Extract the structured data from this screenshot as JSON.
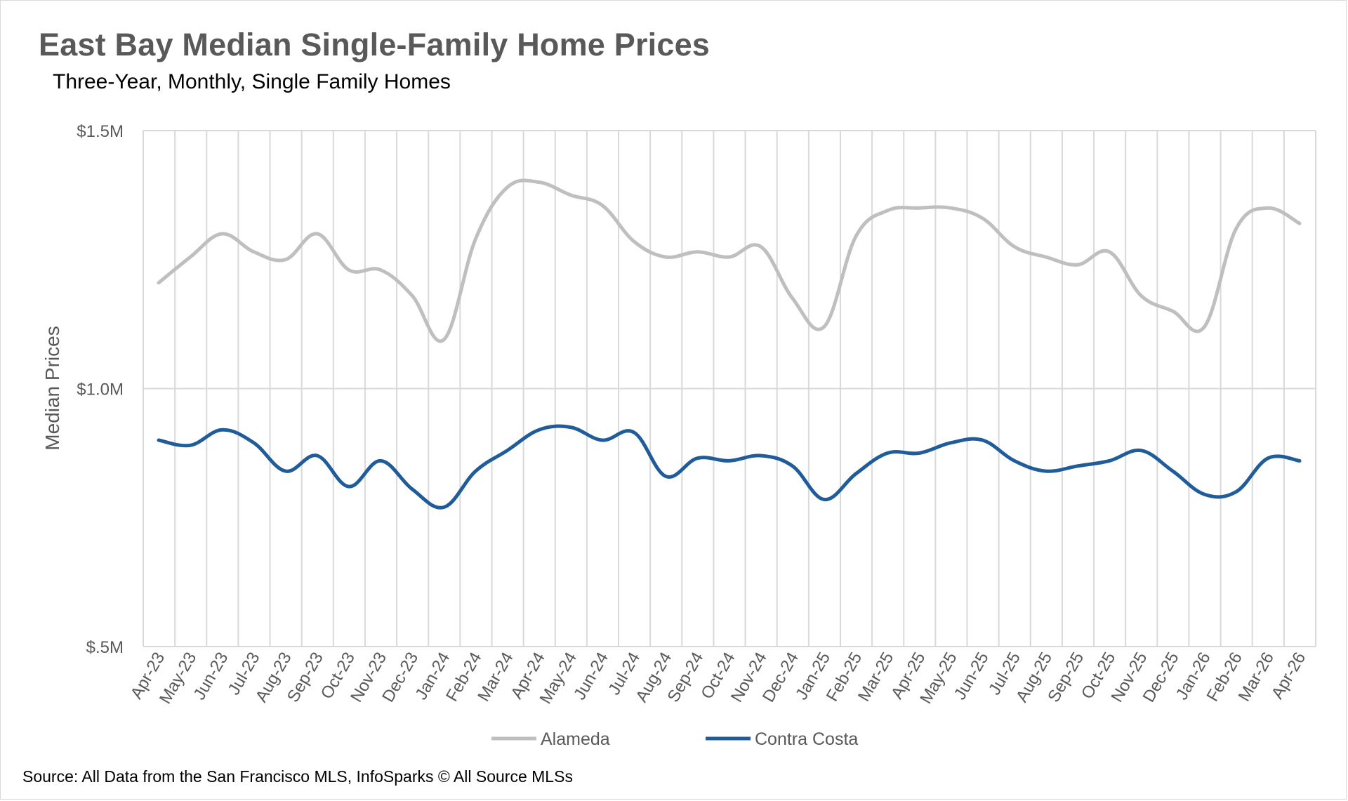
{
  "title": "East Bay Median Single-Family Home Prices",
  "subtitle": "Three-Year, Monthly, Single Family Homes",
  "source": "Source: All Data from the San Francisco MLS, InfoSparks © All Source MLSs",
  "chart_data": {
    "type": "line",
    "title": "East Bay Median Single-Family Home Prices",
    "subtitle": "Three-Year, Monthly, Single Family Homes",
    "xlabel": "",
    "ylabel": "Median Prices",
    "ylim": [
      500000,
      1500000
    ],
    "yticks": [
      500000,
      1000000,
      1500000
    ],
    "ytick_labels": [
      "$.5M",
      "$1.0M",
      "$1.5M"
    ],
    "grid": "vertical and horizontal",
    "legend_position": "bottom",
    "categories": [
      "Apr-23",
      "May-23",
      "Jun-23",
      "Jul-23",
      "Aug-23",
      "Sep-23",
      "Oct-23",
      "Nov-23",
      "Dec-23",
      "Jan-24",
      "Feb-24",
      "Mar-24",
      "Apr-24",
      "May-24",
      "Jun-24",
      "Jul-24",
      "Aug-24",
      "Sep-24",
      "Oct-24",
      "Nov-24",
      "Dec-24",
      "Jan-25",
      "Feb-25",
      "Mar-25",
      "Apr-25",
      "May-25",
      "Jun-25",
      "Jul-25",
      "Aug-25",
      "Sep-25",
      "Oct-25",
      "Nov-25",
      "Dec-25",
      "Jan-26",
      "Feb-26",
      "Mar-26",
      "Apr-26"
    ],
    "series": [
      {
        "name": "Alameda",
        "color": "#bfbfbf",
        "values": [
          1205000,
          1255000,
          1300000,
          1265000,
          1250000,
          1300000,
          1230000,
          1230000,
          1180000,
          1095000,
          1290000,
          1390000,
          1400000,
          1375000,
          1355000,
          1285000,
          1255000,
          1265000,
          1255000,
          1275000,
          1175000,
          1120000,
          1295000,
          1345000,
          1350000,
          1350000,
          1330000,
          1275000,
          1255000,
          1240000,
          1265000,
          1180000,
          1150000,
          1120000,
          1310000,
          1350000,
          1320000
        ]
      },
      {
        "name": "Contra Costa",
        "color": "#1f5c99",
        "values": [
          900000,
          890000,
          920000,
          895000,
          840000,
          870000,
          810000,
          860000,
          805000,
          770000,
          840000,
          880000,
          920000,
          925000,
          900000,
          915000,
          830000,
          865000,
          860000,
          870000,
          850000,
          785000,
          835000,
          875000,
          875000,
          895000,
          900000,
          860000,
          840000,
          850000,
          860000,
          880000,
          840000,
          795000,
          800000,
          865000,
          860000
        ]
      }
    ]
  }
}
